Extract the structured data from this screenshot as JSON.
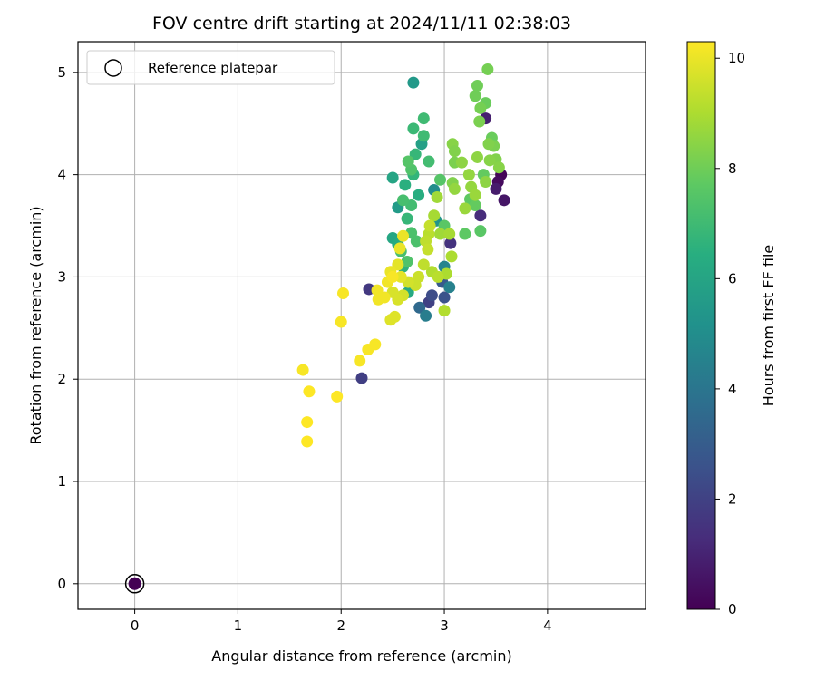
{
  "chart_data": {
    "type": "scatter",
    "title": "FOV centre drift starting at 2024/11/11 02:38:03",
    "xlabel": "Angular distance from reference (arcmin)",
    "ylabel": "Rotation from reference (arcmin)",
    "xlim": [
      -0.55,
      4.95
    ],
    "ylim": [
      -0.25,
      5.3
    ],
    "x_ticks": [
      0,
      1,
      2,
      3,
      4
    ],
    "y_ticks": [
      0,
      1,
      2,
      3,
      4,
      5
    ],
    "grid": true,
    "legend": {
      "position": "top-left",
      "entries": [
        "Reference platepar"
      ]
    },
    "colorbar": {
      "label": "Hours from first FF file",
      "min": 0,
      "max": 10.3,
      "ticks": [
        0,
        2,
        4,
        6,
        8,
        10
      ],
      "colormap": "viridis"
    },
    "reference_point": {
      "x": 0,
      "y": 0,
      "hours": 0
    },
    "points": [
      {
        "x": 3.55,
        "y": 4.0,
        "h": 0.1
      },
      {
        "x": 3.52,
        "y": 3.93,
        "h": 0.3
      },
      {
        "x": 3.58,
        "y": 3.75,
        "h": 0.6
      },
      {
        "x": 3.5,
        "y": 3.86,
        "h": 0.8
      },
      {
        "x": 3.4,
        "y": 4.55,
        "h": 0.9
      },
      {
        "x": 3.35,
        "y": 3.6,
        "h": 1.3
      },
      {
        "x": 3.06,
        "y": 3.33,
        "h": 1.5
      },
      {
        "x": 2.27,
        "y": 2.88,
        "h": 1.7
      },
      {
        "x": 2.2,
        "y": 2.01,
        "h": 1.9
      },
      {
        "x": 2.85,
        "y": 2.75,
        "h": 2.0
      },
      {
        "x": 2.88,
        "y": 2.82,
        "h": 2.4
      },
      {
        "x": 3.0,
        "y": 2.8,
        "h": 2.6
      },
      {
        "x": 2.98,
        "y": 2.95,
        "h": 2.9
      },
      {
        "x": 2.76,
        "y": 2.7,
        "h": 3.5
      },
      {
        "x": 2.82,
        "y": 2.62,
        "h": 4.3
      },
      {
        "x": 3.05,
        "y": 2.9,
        "h": 4.5
      },
      {
        "x": 3.0,
        "y": 3.1,
        "h": 4.6
      },
      {
        "x": 2.9,
        "y": 3.85,
        "h": 5.0
      },
      {
        "x": 2.92,
        "y": 3.55,
        "h": 5.3
      },
      {
        "x": 2.7,
        "y": 4.9,
        "h": 5.5
      },
      {
        "x": 2.55,
        "y": 3.68,
        "h": 5.6
      },
      {
        "x": 2.78,
        "y": 4.3,
        "h": 5.8
      },
      {
        "x": 2.5,
        "y": 3.97,
        "h": 6.0
      },
      {
        "x": 2.5,
        "y": 3.38,
        "h": 6.1
      },
      {
        "x": 2.55,
        "y": 3.32,
        "h": 6.3
      },
      {
        "x": 2.75,
        "y": 3.8,
        "h": 6.4
      },
      {
        "x": 2.62,
        "y": 3.9,
        "h": 6.5
      },
      {
        "x": 2.6,
        "y": 3.1,
        "h": 6.6
      },
      {
        "x": 2.65,
        "y": 2.85,
        "h": 6.2
      },
      {
        "x": 2.7,
        "y": 4.0,
        "h": 6.7
      },
      {
        "x": 2.72,
        "y": 4.2,
        "h": 6.8
      },
      {
        "x": 2.64,
        "y": 3.57,
        "h": 6.8
      },
      {
        "x": 2.7,
        "y": 4.45,
        "h": 6.9
      },
      {
        "x": 2.8,
        "y": 4.55,
        "h": 7.0
      },
      {
        "x": 2.8,
        "y": 4.38,
        "h": 7.0
      },
      {
        "x": 2.85,
        "y": 4.13,
        "h": 7.1
      },
      {
        "x": 2.68,
        "y": 3.7,
        "h": 7.1
      },
      {
        "x": 2.6,
        "y": 3.75,
        "h": 7.2
      },
      {
        "x": 2.58,
        "y": 3.25,
        "h": 7.2
      },
      {
        "x": 2.68,
        "y": 3.43,
        "h": 7.3
      },
      {
        "x": 2.73,
        "y": 3.35,
        "h": 7.3
      },
      {
        "x": 2.64,
        "y": 3.15,
        "h": 7.4
      },
      {
        "x": 2.68,
        "y": 4.05,
        "h": 7.4
      },
      {
        "x": 2.65,
        "y": 4.13,
        "h": 7.5
      },
      {
        "x": 2.96,
        "y": 3.95,
        "h": 7.5
      },
      {
        "x": 3.0,
        "y": 3.5,
        "h": 7.6
      },
      {
        "x": 3.35,
        "y": 3.45,
        "h": 7.6
      },
      {
        "x": 3.2,
        "y": 3.42,
        "h": 7.7
      },
      {
        "x": 3.25,
        "y": 3.76,
        "h": 7.7
      },
      {
        "x": 3.3,
        "y": 3.7,
        "h": 7.8
      },
      {
        "x": 3.38,
        "y": 4.0,
        "h": 7.8
      },
      {
        "x": 3.46,
        "y": 4.36,
        "h": 7.9
      },
      {
        "x": 3.4,
        "y": 4.7,
        "h": 7.9
      },
      {
        "x": 3.32,
        "y": 4.87,
        "h": 8.0
      },
      {
        "x": 3.3,
        "y": 4.77,
        "h": 8.0
      },
      {
        "x": 3.35,
        "y": 4.65,
        "h": 8.1
      },
      {
        "x": 3.42,
        "y": 5.03,
        "h": 8.1
      },
      {
        "x": 3.34,
        "y": 4.52,
        "h": 8.2
      },
      {
        "x": 3.48,
        "y": 4.28,
        "h": 8.2
      },
      {
        "x": 3.43,
        "y": 4.3,
        "h": 8.3
      },
      {
        "x": 3.5,
        "y": 4.15,
        "h": 8.3
      },
      {
        "x": 3.53,
        "y": 4.07,
        "h": 8.4
      },
      {
        "x": 3.44,
        "y": 4.14,
        "h": 8.4
      },
      {
        "x": 3.4,
        "y": 3.93,
        "h": 8.5
      },
      {
        "x": 3.32,
        "y": 4.17,
        "h": 8.5
      },
      {
        "x": 3.24,
        "y": 4.0,
        "h": 8.6
      },
      {
        "x": 3.26,
        "y": 3.88,
        "h": 8.6
      },
      {
        "x": 3.3,
        "y": 3.8,
        "h": 8.7
      },
      {
        "x": 3.2,
        "y": 3.67,
        "h": 8.7
      },
      {
        "x": 3.08,
        "y": 3.92,
        "h": 8.3
      },
      {
        "x": 3.1,
        "y": 4.12,
        "h": 8.2
      },
      {
        "x": 3.08,
        "y": 4.3,
        "h": 8.4
      },
      {
        "x": 3.1,
        "y": 4.23,
        "h": 8.3
      },
      {
        "x": 3.17,
        "y": 4.12,
        "h": 8.5
      },
      {
        "x": 3.1,
        "y": 3.86,
        "h": 8.6
      },
      {
        "x": 2.93,
        "y": 3.78,
        "h": 8.8
      },
      {
        "x": 2.96,
        "y": 3.42,
        "h": 8.8
      },
      {
        "x": 3.05,
        "y": 3.42,
        "h": 8.9
      },
      {
        "x": 2.9,
        "y": 3.6,
        "h": 8.9
      },
      {
        "x": 3.07,
        "y": 3.2,
        "h": 9.0
      },
      {
        "x": 3.02,
        "y": 3.03,
        "h": 9.0
      },
      {
        "x": 3.0,
        "y": 2.67,
        "h": 9.1
      },
      {
        "x": 2.88,
        "y": 3.05,
        "h": 9.1
      },
      {
        "x": 2.94,
        "y": 3.0,
        "h": 9.2
      },
      {
        "x": 2.85,
        "y": 3.42,
        "h": 9.2
      },
      {
        "x": 2.82,
        "y": 3.35,
        "h": 9.3
      },
      {
        "x": 2.8,
        "y": 3.12,
        "h": 9.3
      },
      {
        "x": 2.84,
        "y": 3.27,
        "h": 9.4
      },
      {
        "x": 2.86,
        "y": 3.5,
        "h": 9.4
      },
      {
        "x": 2.75,
        "y": 3.0,
        "h": 9.5
      },
      {
        "x": 2.72,
        "y": 2.92,
        "h": 9.5
      },
      {
        "x": 2.65,
        "y": 2.95,
        "h": 9.6
      },
      {
        "x": 2.6,
        "y": 2.82,
        "h": 9.6
      },
      {
        "x": 2.55,
        "y": 2.78,
        "h": 9.7
      },
      {
        "x": 2.5,
        "y": 2.85,
        "h": 9.7
      },
      {
        "x": 2.48,
        "y": 2.58,
        "h": 9.8
      },
      {
        "x": 2.52,
        "y": 2.61,
        "h": 9.8
      },
      {
        "x": 2.58,
        "y": 3.0,
        "h": 9.9
      },
      {
        "x": 2.55,
        "y": 3.12,
        "h": 9.9
      },
      {
        "x": 2.48,
        "y": 3.05,
        "h": 10.0
      },
      {
        "x": 2.57,
        "y": 3.28,
        "h": 10.0
      },
      {
        "x": 2.6,
        "y": 3.4,
        "h": 10.0
      },
      {
        "x": 2.45,
        "y": 2.95,
        "h": 10.1
      },
      {
        "x": 2.35,
        "y": 2.87,
        "h": 10.1
      },
      {
        "x": 2.36,
        "y": 2.78,
        "h": 10.1
      },
      {
        "x": 2.42,
        "y": 2.8,
        "h": 10.1
      },
      {
        "x": 2.5,
        "y": 3.0,
        "h": 10.2
      },
      {
        "x": 2.02,
        "y": 2.84,
        "h": 10.2
      },
      {
        "x": 2.0,
        "y": 2.56,
        "h": 10.2
      },
      {
        "x": 2.26,
        "y": 2.29,
        "h": 10.2
      },
      {
        "x": 2.33,
        "y": 2.34,
        "h": 10.2
      },
      {
        "x": 2.18,
        "y": 2.18,
        "h": 10.2
      },
      {
        "x": 1.63,
        "y": 2.09,
        "h": 10.2
      },
      {
        "x": 1.69,
        "y": 1.88,
        "h": 10.3
      },
      {
        "x": 1.96,
        "y": 1.83,
        "h": 10.3
      },
      {
        "x": 1.67,
        "y": 1.58,
        "h": 10.3
      },
      {
        "x": 1.67,
        "y": 1.39,
        "h": 10.3
      }
    ]
  }
}
